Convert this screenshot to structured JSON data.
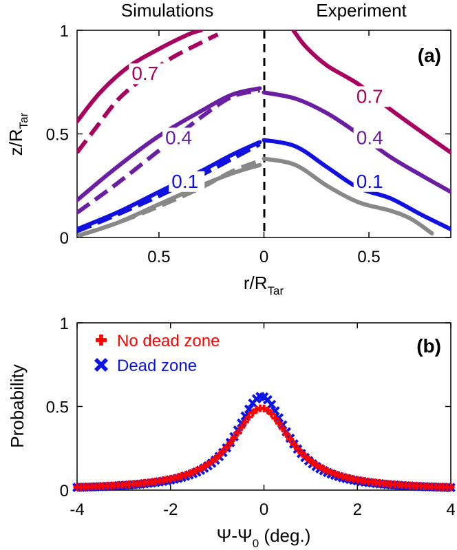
{
  "chart_data": [
    {
      "type": "line",
      "panel": "(a)",
      "headings": {
        "left": "Simulations",
        "right": "Experiment"
      },
      "xlabel": {
        "main": "r/R",
        "sub": "Tar"
      },
      "ylabel": {
        "main": "z/R",
        "sub": "Tar"
      },
      "yticks": [
        "0",
        "0.5",
        "1"
      ],
      "yticks_values": [
        0,
        0.5,
        1
      ],
      "ylim": [
        0,
        1
      ],
      "xticks": [
        "0.5",
        "0",
        "0.5"
      ],
      "xticks_values": [
        -0.5,
        0,
        0.5
      ],
      "xlim": [
        -0.89,
        0.89
      ],
      "colors": {
        "0.7": "#a8005e",
        "0.4": "#6a1fa3",
        "0.1": "#1010e0",
        "gray": "#888888"
      },
      "series": [
        {
          "name": "sim-0.7-solid",
          "label": "0.7",
          "side": "left",
          "style": "solid",
          "color": "#a8005e",
          "points": [
            [
              -0.89,
              0.56
            ],
            [
              -0.78,
              0.7
            ],
            [
              -0.65,
              0.82
            ],
            [
              -0.5,
              0.91
            ],
            [
              -0.36,
              0.98
            ],
            [
              -0.3,
              1.0
            ]
          ]
        },
        {
          "name": "sim-0.7-dashed",
          "label": "0.7",
          "side": "left",
          "style": "dashed",
          "color": "#a8005e",
          "points": [
            [
              -0.89,
              0.41
            ],
            [
              -0.8,
              0.53
            ],
            [
              -0.7,
              0.66
            ],
            [
              -0.6,
              0.75
            ],
            [
              -0.45,
              0.86
            ],
            [
              -0.3,
              0.94
            ],
            [
              -0.22,
              0.98
            ]
          ]
        },
        {
          "name": "sim-0.4-solid",
          "label": "0.4",
          "side": "left",
          "style": "solid",
          "color": "#6a1fa3",
          "points": [
            [
              -0.89,
              0.18
            ],
            [
              -0.7,
              0.34
            ],
            [
              -0.5,
              0.49
            ],
            [
              -0.3,
              0.61
            ],
            [
              -0.15,
              0.69
            ],
            [
              -0.02,
              0.72
            ]
          ]
        },
        {
          "name": "sim-0.4-dashed",
          "label": "0.4",
          "side": "left",
          "style": "dashed",
          "color": "#6a1fa3",
          "points": [
            [
              -0.89,
              0.12
            ],
            [
              -0.7,
              0.26
            ],
            [
              -0.5,
              0.42
            ],
            [
              -0.3,
              0.58
            ],
            [
              -0.15,
              0.68
            ],
            [
              -0.02,
              0.71
            ]
          ]
        },
        {
          "name": "sim-0.1-solid",
          "label": "0.1",
          "side": "left",
          "style": "solid",
          "color": "#1010e0",
          "points": [
            [
              -0.89,
              0.04
            ],
            [
              -0.7,
              0.12
            ],
            [
              -0.5,
              0.22
            ],
            [
              -0.3,
              0.32
            ],
            [
              -0.15,
              0.4
            ],
            [
              -0.02,
              0.46
            ]
          ]
        },
        {
          "name": "sim-0.1-dashed",
          "label": "0.1",
          "side": "left",
          "style": "dashed",
          "color": "#1010e0",
          "points": [
            [
              -0.89,
              0.03
            ],
            [
              -0.7,
              0.11
            ],
            [
              -0.5,
              0.2
            ],
            [
              -0.3,
              0.3
            ],
            [
              -0.15,
              0.38
            ],
            [
              -0.02,
              0.45
            ]
          ]
        },
        {
          "name": "sim-gray-solid",
          "label": "",
          "side": "left",
          "style": "solid",
          "color": "#888888",
          "points": [
            [
              -0.88,
              0.01
            ],
            [
              -0.7,
              0.07
            ],
            [
              -0.5,
              0.16
            ],
            [
              -0.3,
              0.25
            ],
            [
              -0.15,
              0.31
            ],
            [
              -0.02,
              0.35
            ]
          ]
        },
        {
          "name": "sim-gray-dashed",
          "label": "",
          "side": "left",
          "style": "dashed",
          "color": "#888888",
          "points": [
            [
              -0.88,
              0.01
            ],
            [
              -0.7,
              0.07
            ],
            [
              -0.5,
              0.15
            ],
            [
              -0.3,
              0.24
            ],
            [
              -0.15,
              0.32
            ],
            [
              -0.02,
              0.37
            ]
          ]
        },
        {
          "name": "exp-0.7",
          "label": "0.7",
          "side": "right",
          "style": "solid",
          "color": "#a8005e",
          "points": [
            [
              0.14,
              1.0
            ],
            [
              0.2,
              0.92
            ],
            [
              0.3,
              0.83
            ],
            [
              0.45,
              0.74
            ],
            [
              0.6,
              0.62
            ],
            [
              0.75,
              0.51
            ],
            [
              0.89,
              0.41
            ]
          ]
        },
        {
          "name": "exp-0.4",
          "label": "0.4",
          "side": "right",
          "style": "solid",
          "color": "#6a1fa3",
          "points": [
            [
              0.0,
              0.7
            ],
            [
              0.15,
              0.67
            ],
            [
              0.3,
              0.6
            ],
            [
              0.45,
              0.5
            ],
            [
              0.6,
              0.39
            ],
            [
              0.75,
              0.3
            ],
            [
              0.89,
              0.22
            ]
          ]
        },
        {
          "name": "exp-0.1",
          "label": "0.1",
          "side": "right",
          "style": "solid",
          "color": "#1010e0",
          "points": [
            [
              0.0,
              0.47
            ],
            [
              0.15,
              0.44
            ],
            [
              0.3,
              0.34
            ],
            [
              0.45,
              0.24
            ],
            [
              0.6,
              0.19
            ],
            [
              0.75,
              0.11
            ],
            [
              0.89,
              0.04
            ]
          ]
        },
        {
          "name": "exp-gray",
          "label": "",
          "side": "right",
          "style": "solid",
          "color": "#888888",
          "points": [
            [
              0.0,
              0.38
            ],
            [
              0.15,
              0.35
            ],
            [
              0.3,
              0.25
            ],
            [
              0.45,
              0.17
            ],
            [
              0.6,
              0.13
            ],
            [
              0.7,
              0.09
            ],
            [
              0.8,
              0.02
            ]
          ]
        }
      ],
      "curve_labels": [
        {
          "text": "0.7",
          "x": -0.63,
          "y": 0.76,
          "color": "#a8005e"
        },
        {
          "text": "0.4",
          "x": -0.47,
          "y": 0.45,
          "color": "#6a1fa3"
        },
        {
          "text": "0.1",
          "x": -0.44,
          "y": 0.24,
          "color": "#1010e0"
        },
        {
          "text": "0.7",
          "x": 0.44,
          "y": 0.65,
          "color": "#a8005e"
        },
        {
          "text": "0.4",
          "x": 0.44,
          "y": 0.45,
          "color": "#6a1fa3"
        },
        {
          "text": "0.1",
          "x": 0.44,
          "y": 0.24,
          "color": "#1010e0"
        }
      ]
    },
    {
      "type": "scatter",
      "panel": "(b)",
      "xlabel": {
        "main": "Ψ-Ψ",
        "sub": "0",
        "suffix": " (deg.)"
      },
      "ylabel": "Probability",
      "xticks": [
        "-4",
        "-2",
        "0",
        "2",
        "4"
      ],
      "xticks_values": [
        -4,
        -2,
        0,
        2,
        4
      ],
      "xlim": [
        -4,
        4
      ],
      "yticks": [
        "0",
        "0.5",
        "1"
      ],
      "yticks_values": [
        0,
        0.5,
        1
      ],
      "ylim": [
        0,
        1
      ],
      "legend": [
        {
          "label": "No dead zone",
          "color": "#ff0000",
          "marker": "plus"
        },
        {
          "label": "Dead zone",
          "color": "#0a14e6",
          "marker": "cross"
        }
      ],
      "series": [
        {
          "name": "Dead zone",
          "color": "#0a14e6",
          "marker": "cross",
          "peak": 0.56,
          "center": -0.05,
          "gamma": 0.68
        },
        {
          "name": "No dead zone",
          "color": "#ff0000",
          "marker": "plus",
          "peak": 0.49,
          "center": -0.05,
          "gamma": 0.78
        }
      ],
      "x_range": [
        -4,
        4
      ],
      "step": 0.08
    }
  ]
}
